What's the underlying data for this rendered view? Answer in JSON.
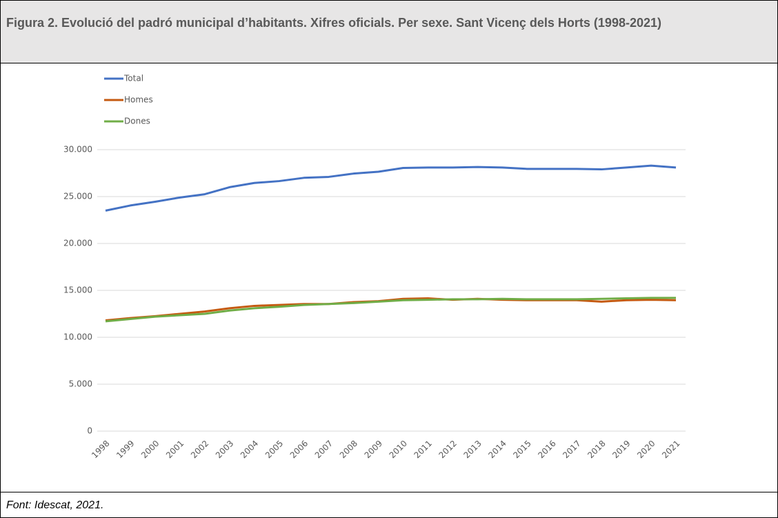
{
  "chart_data": {
    "type": "line",
    "title": "Figura 2. Evolució del padró municipal d’habitants. Xifres oficials. Per sexe. Sant Vicenç dels Horts (1998-2021)",
    "source": "Font: Idescat, 2021.",
    "categories": [
      "1998",
      "1999",
      "2000",
      "2001",
      "2002",
      "2003",
      "2004",
      "2005",
      "2006",
      "2007",
      "2008",
      "2009",
      "2010",
      "2011",
      "2012",
      "2013",
      "2014",
      "2015",
      "2016",
      "2017",
      "2018",
      "2019",
      "2020",
      "2021"
    ],
    "series": [
      {
        "name": "Total",
        "color": "#4472c4",
        "values": [
          23500,
          24050,
          24450,
          24900,
          25250,
          26000,
          26450,
          26650,
          27000,
          27100,
          27450,
          27650,
          28050,
          28100,
          28100,
          28150,
          28100,
          27950,
          27950,
          27950,
          27900,
          28100,
          28300,
          28100
        ]
      },
      {
        "name": "Homes",
        "color": "#c55a11",
        "values": [
          11800,
          12050,
          12250,
          12500,
          12750,
          13100,
          13350,
          13450,
          13550,
          13550,
          13750,
          13850,
          14100,
          14150,
          14000,
          14100,
          14000,
          13950,
          13950,
          13950,
          13800,
          13950,
          14000,
          13950
        ]
      },
      {
        "name": "Dones",
        "color": "#70ad47",
        "values": [
          11700,
          11950,
          12200,
          12350,
          12500,
          12850,
          13100,
          13250,
          13450,
          13550,
          13650,
          13800,
          13950,
          14000,
          14050,
          14050,
          14100,
          14050,
          14050,
          14050,
          14100,
          14150,
          14200,
          14200
        ]
      }
    ],
    "ylim": [
      0,
      30000
    ],
    "yticks": [
      0,
      {
        "value": 5000,
        "label": "5.000"
      },
      {
        "value": 10000,
        "label": "10.000"
      },
      {
        "value": 15000,
        "label": "15.000"
      },
      {
        "value": 20000,
        "label": "20.000"
      },
      {
        "value": 25000,
        "label": "25.000"
      },
      {
        "value": 30000,
        "label": "30.000"
      }
    ],
    "grid": true,
    "legend": "top-left"
  }
}
